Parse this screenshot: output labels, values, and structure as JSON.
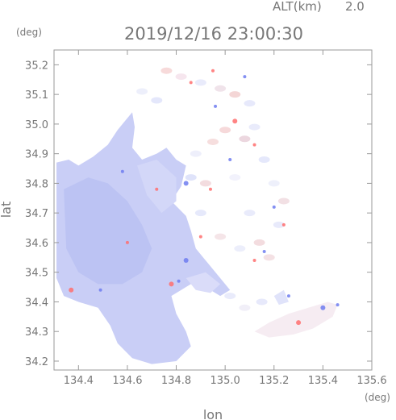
{
  "header": {
    "altitude_label": "ALT(km)",
    "altitude_value": "2.0",
    "timestamp": "2019/12/16 23:00:30",
    "lat_unit": "(deg)",
    "lon_unit": "(deg)"
  },
  "chart_data": {
    "type": "heatmap",
    "title": "2019/12/16 23:00:30",
    "xlabel": "lon",
    "ylabel": "lat",
    "xlim": [
      134.3,
      135.6
    ],
    "ylim": [
      34.17,
      35.25
    ],
    "x_ticks": [
      "134.4",
      "134.6",
      "134.8",
      "135.0",
      "135.2",
      "135.4",
      "135.6"
    ],
    "y_ticks": [
      "34.2",
      "34.3",
      "34.4",
      "34.5",
      "34.6",
      "34.7",
      "34.8",
      "34.9",
      "35.0",
      "35.1",
      "35.2"
    ],
    "colors": {
      "negative": "#6f7cf0",
      "neutral": "#eef0fc",
      "positive": "#ff6f6f",
      "frame": "#9a9a9a"
    }
  }
}
